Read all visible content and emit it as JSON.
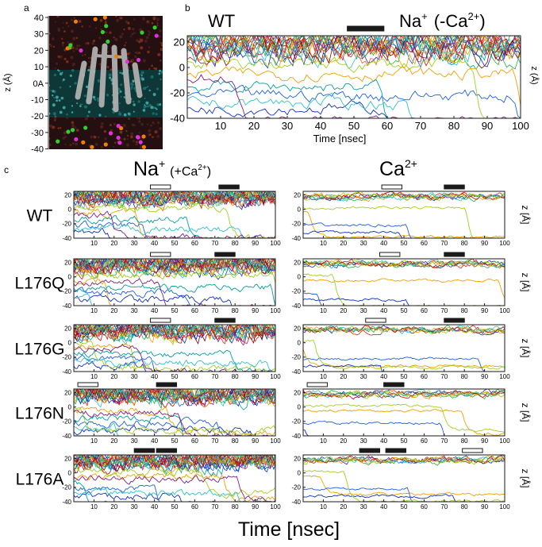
{
  "panel_letters": {
    "a": "a",
    "b": "b",
    "c": "c"
  },
  "panel_a": {
    "ylabel": "z (Å)",
    "ticks": [
      "40",
      "30",
      "20",
      "10",
      "0",
      "-10",
      "-20",
      "-30",
      "-40"
    ],
    "zero_label": "0A"
  },
  "panel_b": {
    "title_left": "WT",
    "title_right_main": "Na",
    "title_right_sup": "+",
    "title_right_cond": "(-Ca",
    "title_right_cond_sup": "2+",
    "title_right_close": ")",
    "ylabel": "z (Å)",
    "xlabel": "Time [nsec]"
  },
  "panel_c": {
    "col_na_main": "Na",
    "col_na_sup": "+",
    "col_na_cond": "(+Ca",
    "col_na_cond_sup": "2+",
    "col_na_close": ")",
    "col_ca_main": "Ca",
    "col_ca_sup": "2+",
    "row_labels": [
      "WT",
      "L176Q",
      "L176G",
      "L176N",
      "L176A"
    ],
    "zlabel": "z [Å]",
    "xlabel": "Time [nsec]"
  },
  "colors": {
    "traces": [
      "#e02020",
      "#1030c0",
      "#20b040",
      "#f0a000",
      "#30c0d0",
      "#c01010",
      "#a0d020",
      "#f06020",
      "#2060e0",
      "#802080",
      "#800000",
      "#00a0a0"
    ],
    "bar_filled": "#1a1a1a",
    "bar_open": "#ffffff",
    "membrane_bg": "#0e3838",
    "solvent_bg": "#2a1010",
    "protein": "#9a9a9a"
  },
  "chart_data": [
    {
      "type": "line",
      "panel": "b",
      "title": "WT  Na+ (-Ca2+)",
      "xlabel": "Time [nsec]",
      "ylabel": "z (Å)",
      "xlim": [
        0,
        100
      ],
      "ylim": [
        -40,
        25
      ],
      "xticks": [
        10,
        20,
        30,
        40,
        50,
        60,
        70,
        80,
        90,
        100
      ],
      "yticks": [
        20,
        0,
        -20,
        -40
      ],
      "bars": [
        {
          "start": 48,
          "end": 59,
          "style": "filled"
        }
      ],
      "notes": "many ion z-trajectories"
    },
    {
      "type": "line",
      "panel": "c",
      "xlabel": "Time [nsec]",
      "ylabel": "z [Å]",
      "xlim": [
        0,
        100
      ],
      "ylim": [
        -40,
        25
      ],
      "xticks": [
        10,
        20,
        30,
        40,
        50,
        60,
        70,
        80,
        90,
        100
      ],
      "yticks": [
        20,
        0,
        -20,
        -40
      ],
      "panels": [
        {
          "row": "WT",
          "column": "Na+ (+Ca2+)",
          "bars": [
            {
              "start": 38,
              "end": 48,
              "style": "open"
            },
            {
              "start": 72,
              "end": 82,
              "style": "filled"
            }
          ]
        },
        {
          "row": "WT",
          "column": "Ca2+",
          "bars": [
            {
              "start": 39,
              "end": 49,
              "style": "open"
            },
            {
              "start": 70,
              "end": 80,
              "style": "filled"
            }
          ]
        },
        {
          "row": "L176Q",
          "column": "Na+ (+Ca2+)",
          "bars": [
            {
              "start": 38,
              "end": 48,
              "style": "open"
            },
            {
              "start": 70,
              "end": 80,
              "style": "filled"
            }
          ]
        },
        {
          "row": "L176Q",
          "column": "Ca2+",
          "bars": [
            {
              "start": 38,
              "end": 48,
              "style": "open"
            },
            {
              "start": 70,
              "end": 80,
              "style": "filled"
            }
          ]
        },
        {
          "row": "L176G",
          "column": "Na+ (+Ca2+)",
          "bars": [
            {
              "start": 38,
              "end": 48,
              "style": "open"
            },
            {
              "start": 70,
              "end": 80,
              "style": "filled"
            }
          ]
        },
        {
          "row": "L176G",
          "column": "Ca2+",
          "bars": [
            {
              "start": 31,
              "end": 41,
              "style": "open"
            },
            {
              "start": 70,
              "end": 80,
              "style": "filled"
            }
          ]
        },
        {
          "row": "L176N",
          "column": "Na+ (+Ca2+)",
          "bars": [
            {
              "start": 2,
              "end": 12,
              "style": "open"
            },
            {
              "start": 41,
              "end": 51,
              "style": "filled"
            }
          ]
        },
        {
          "row": "L176N",
          "column": "Ca2+",
          "bars": [
            {
              "start": 2,
              "end": 12,
              "style": "open"
            },
            {
              "start": 40,
              "end": 50,
              "style": "filled"
            }
          ]
        },
        {
          "row": "L176A",
          "column": "Na+ (+Ca2+)",
          "bars": [
            {
              "start": 30,
              "end": 40,
              "style": "filled"
            },
            {
              "start": 41,
              "end": 51,
              "style": "filled"
            }
          ]
        },
        {
          "row": "L176A",
          "column": "Ca2+",
          "bars": [
            {
              "start": 28,
              "end": 38,
              "style": "filled"
            },
            {
              "start": 41,
              "end": 51,
              "style": "filled"
            },
            {
              "start": 79,
              "end": 89,
              "style": "open"
            }
          ]
        }
      ]
    }
  ]
}
